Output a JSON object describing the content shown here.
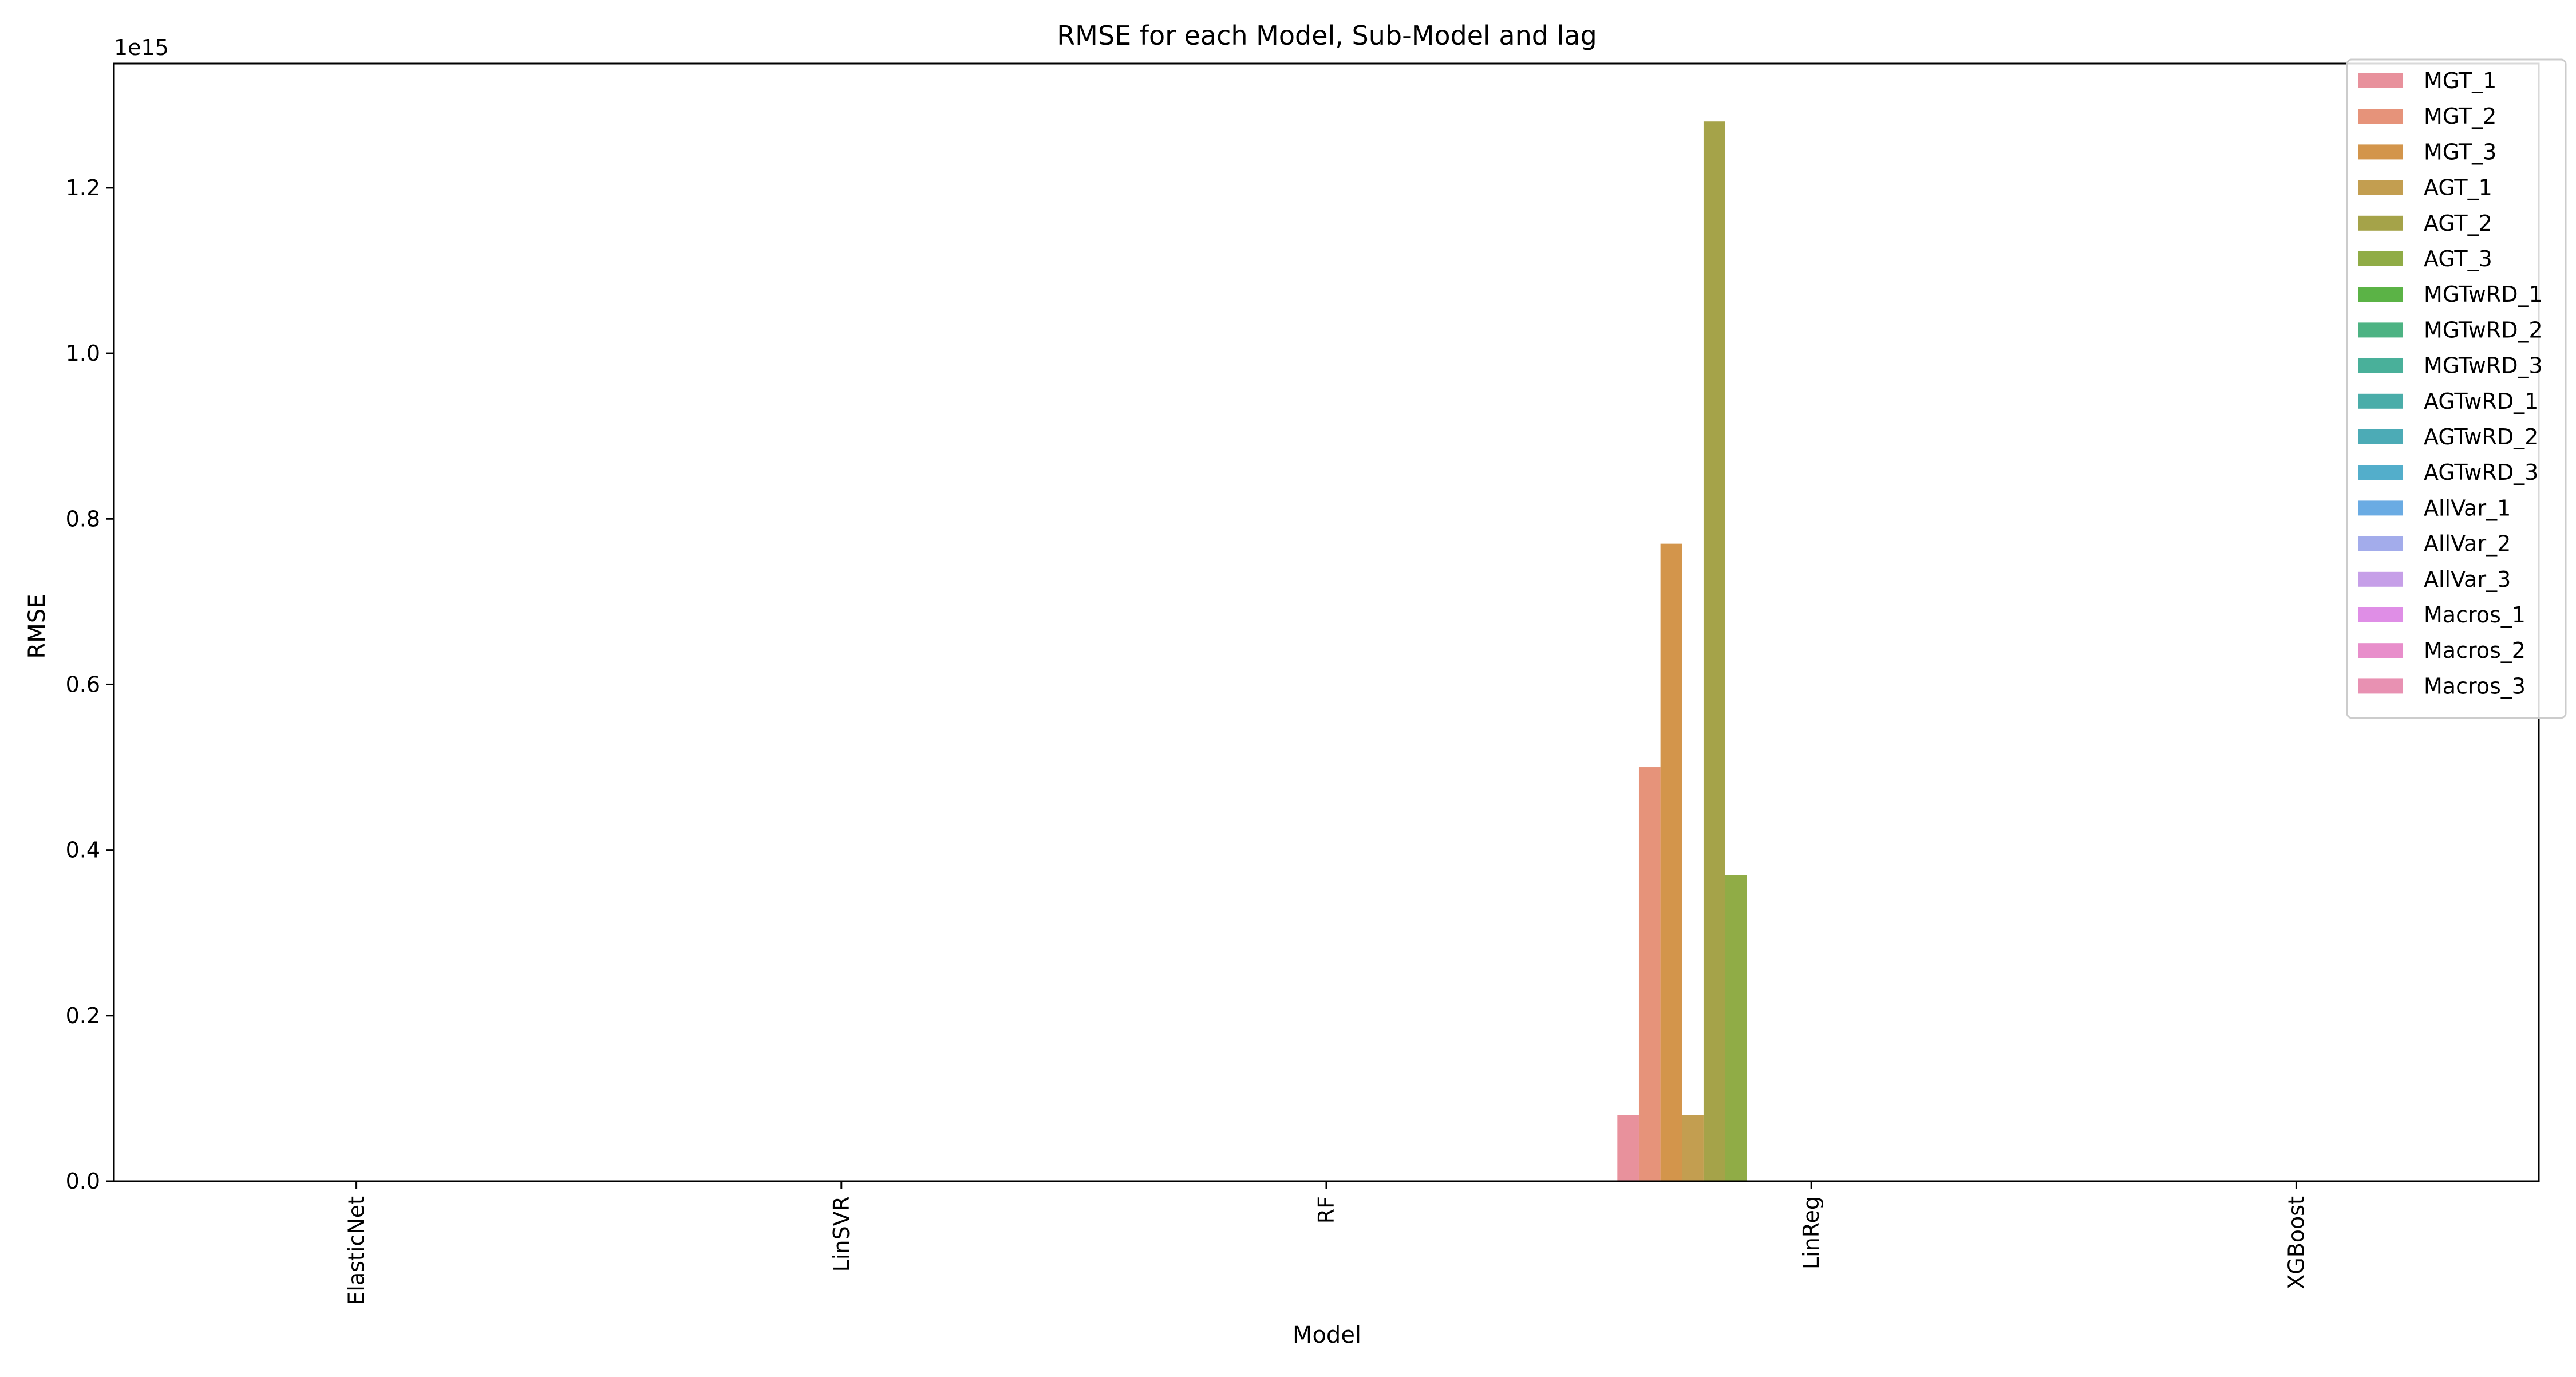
{
  "chart_data": {
    "type": "bar",
    "title": "RMSE for each Model, Sub-Model and lag",
    "xlabel": "Model",
    "ylabel": "RMSE",
    "offset_text": "1e15",
    "ylim": [
      0,
      1.35
    ],
    "yticks": [
      "0.0",
      "0.2",
      "0.4",
      "0.6",
      "0.8",
      "1.0",
      "1.2"
    ],
    "categories": [
      "ElasticNet",
      "LinSVR",
      "RF",
      "LinReg",
      "XGBoost"
    ],
    "legend_position": "top-right",
    "grid": false,
    "series": [
      {
        "name": "MGT_1",
        "color": "#e8919c",
        "values": [
          0,
          0,
          0,
          0.08,
          0
        ]
      },
      {
        "name": "MGT_2",
        "color": "#e6937a",
        "values": [
          0,
          0,
          0,
          0.5,
          0
        ]
      },
      {
        "name": "MGT_3",
        "color": "#d3954b",
        "values": [
          0,
          0,
          0,
          0.77,
          0
        ]
      },
      {
        "name": "AGT_1",
        "color": "#c39e50",
        "values": [
          0,
          0,
          0,
          0.08,
          0
        ]
      },
      {
        "name": "AGT_2",
        "color": "#a5a349",
        "values": [
          0,
          0,
          0,
          1.28,
          0
        ]
      },
      {
        "name": "AGT_3",
        "color": "#90ac46",
        "values": [
          0,
          0,
          0,
          0.37,
          0
        ]
      },
      {
        "name": "MGTwRD_1",
        "color": "#5bb346",
        "values": [
          0,
          0,
          0,
          0,
          0
        ]
      },
      {
        "name": "MGTwRD_2",
        "color": "#4db383",
        "values": [
          0,
          0,
          0,
          0,
          0
        ]
      },
      {
        "name": "MGTwRD_3",
        "color": "#49b09a",
        "values": [
          0,
          0,
          0,
          0,
          0
        ]
      },
      {
        "name": "AGTwRD_1",
        "color": "#4aada9",
        "values": [
          0,
          0,
          0,
          0,
          0
        ]
      },
      {
        "name": "AGTwRD_2",
        "color": "#4cabb6",
        "values": [
          0,
          0,
          0,
          0,
          0
        ]
      },
      {
        "name": "AGTwRD_3",
        "color": "#53aecb",
        "values": [
          0,
          0,
          0,
          0,
          0
        ]
      },
      {
        "name": "AllVar_1",
        "color": "#6aabe3",
        "values": [
          0,
          0,
          0,
          0,
          0
        ]
      },
      {
        "name": "AllVar_2",
        "color": "#a3aceb",
        "values": [
          0,
          0,
          0,
          0,
          0
        ]
      },
      {
        "name": "AllVar_3",
        "color": "#c69fe8",
        "values": [
          0,
          0,
          0,
          0,
          0
        ]
      },
      {
        "name": "Macros_1",
        "color": "#df8ee6",
        "values": [
          0,
          0,
          0,
          0,
          0
        ]
      },
      {
        "name": "Macros_2",
        "color": "#e88ecb",
        "values": [
          0,
          0,
          0,
          0,
          0
        ]
      },
      {
        "name": "Macros_3",
        "color": "#e891b2",
        "values": [
          0,
          0,
          0,
          0,
          0
        ]
      }
    ]
  }
}
